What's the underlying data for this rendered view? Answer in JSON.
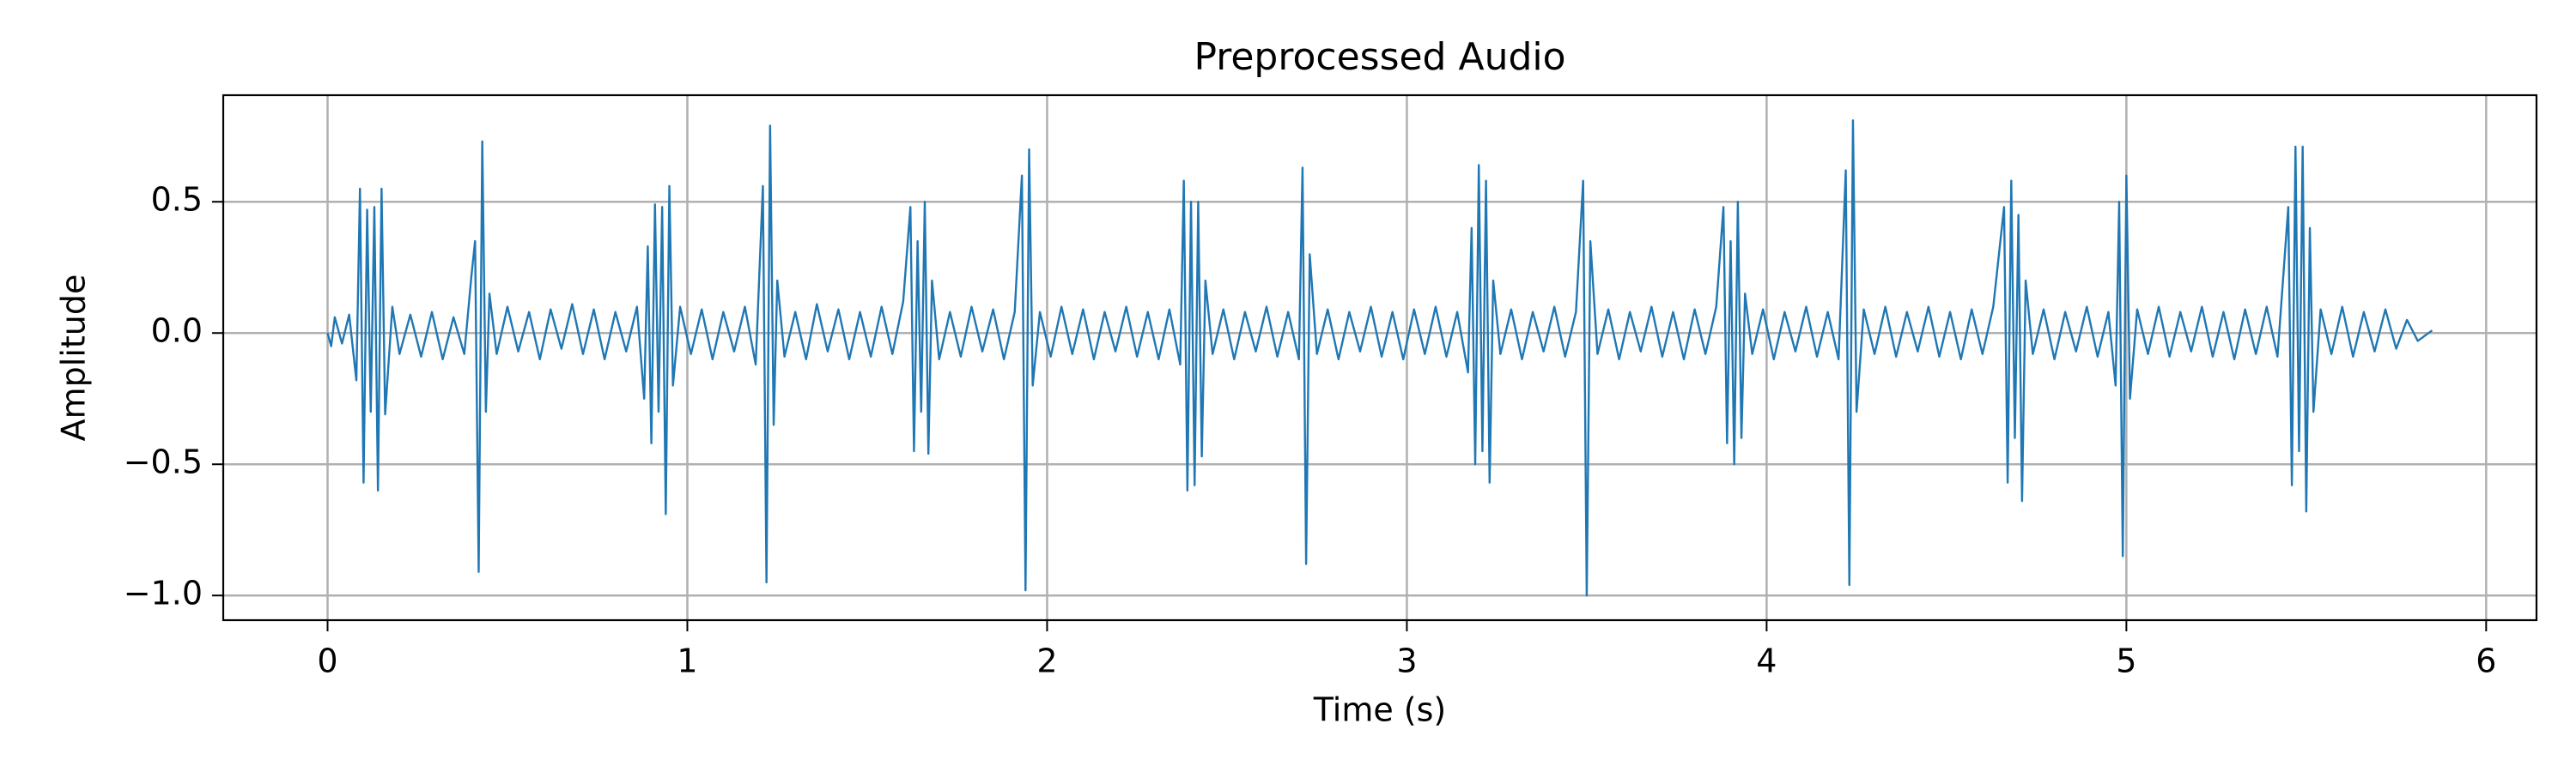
{
  "chart_data": {
    "type": "line",
    "title": "Preprocessed Audio",
    "x_label": "Time (s)",
    "y_label": "Amplitude",
    "color": "#1f77b4",
    "grid": true,
    "xlim": [
      -0.29,
      6.14
    ],
    "xticks": [
      0,
      1,
      2,
      3,
      4,
      5,
      6
    ],
    "ylim": [
      -1.094,
      0.906
    ],
    "yticks": [
      {
        "value": -1,
        "label": "−1.0"
      },
      {
        "value": -0.5,
        "label": "−0.5"
      },
      {
        "value": 0,
        "label": "0.0"
      },
      {
        "value": 0.5,
        "label": "0.5"
      }
    ],
    "x": [
      0,
      0.01,
      0.02,
      0.04,
      0.06,
      0.08,
      0.09,
      0.1,
      0.11,
      0.12,
      0.13,
      0.14,
      0.15,
      0.16,
      0.18,
      0.2,
      0.23,
      0.26,
      0.29,
      0.32,
      0.35,
      0.38,
      0.4,
      0.41,
      0.42,
      0.43,
      0.44,
      0.45,
      0.47,
      0.5,
      0.53,
      0.56,
      0.59,
      0.62,
      0.65,
      0.68,
      0.71,
      0.74,
      0.77,
      0.8,
      0.83,
      0.86,
      0.88,
      0.89,
      0.9,
      0.91,
      0.92,
      0.93,
      0.94,
      0.95,
      0.96,
      0.98,
      1.01,
      1.04,
      1.07,
      1.1,
      1.13,
      1.16,
      1.19,
      1.21,
      1.22,
      1.23,
      1.24,
      1.25,
      1.27,
      1.3,
      1.33,
      1.36,
      1.39,
      1.42,
      1.45,
      1.48,
      1.51,
      1.54,
      1.57,
      1.6,
      1.62,
      1.63,
      1.64,
      1.65,
      1.66,
      1.67,
      1.68,
      1.7,
      1.73,
      1.76,
      1.79,
      1.82,
      1.85,
      1.88,
      1.91,
      1.93,
      1.94,
      1.95,
      1.96,
      1.98,
      2.01,
      2.04,
      2.07,
      2.1,
      2.13,
      2.16,
      2.19,
      2.22,
      2.25,
      2.28,
      2.31,
      2.34,
      2.37,
      2.38,
      2.39,
      2.4,
      2.41,
      2.42,
      2.43,
      2.44,
      2.46,
      2.49,
      2.52,
      2.55,
      2.58,
      2.61,
      2.64,
      2.67,
      2.7,
      2.71,
      2.72,
      2.73,
      2.75,
      2.78,
      2.81,
      2.84,
      2.87,
      2.9,
      2.93,
      2.96,
      2.99,
      3.02,
      3.05,
      3.08,
      3.11,
      3.14,
      3.17,
      3.18,
      3.19,
      3.2,
      3.21,
      3.22,
      3.23,
      3.24,
      3.26,
      3.29,
      3.32,
      3.35,
      3.38,
      3.41,
      3.44,
      3.47,
      3.49,
      3.5,
      3.51,
      3.53,
      3.56,
      3.59,
      3.62,
      3.65,
      3.68,
      3.71,
      3.74,
      3.77,
      3.8,
      3.83,
      3.86,
      3.88,
      3.89,
      3.9,
      3.91,
      3.92,
      3.93,
      3.94,
      3.96,
      3.99,
      4.02,
      4.05,
      4.08,
      4.11,
      4.14,
      4.17,
      4.2,
      4.22,
      4.23,
      4.24,
      4.25,
      4.27,
      4.3,
      4.33,
      4.36,
      4.39,
      4.42,
      4.45,
      4.48,
      4.51,
      4.54,
      4.57,
      4.6,
      4.63,
      4.66,
      4.67,
      4.68,
      4.69,
      4.7,
      4.71,
      4.72,
      4.74,
      4.77,
      4.8,
      4.83,
      4.86,
      4.89,
      4.92,
      4.95,
      4.97,
      4.98,
      4.99,
      5.0,
      5.01,
      5.03,
      5.06,
      5.09,
      5.12,
      5.15,
      5.18,
      5.21,
      5.24,
      5.27,
      5.3,
      5.33,
      5.36,
      5.39,
      5.42,
      5.45,
      5.46,
      5.47,
      5.48,
      5.49,
      5.5,
      5.51,
      5.52,
      5.54,
      5.57,
      5.6,
      5.63,
      5.66,
      5.69,
      5.72,
      5.75,
      5.78,
      5.81,
      5.85
    ],
    "values": [
      0,
      -0.05,
      0.06,
      -0.04,
      0.07,
      -0.18,
      0.55,
      -0.57,
      0.47,
      -0.3,
      0.48,
      -0.6,
      0.55,
      -0.31,
      0.1,
      -0.08,
      0.07,
      -0.09,
      0.08,
      -0.1,
      0.06,
      -0.08,
      0.22,
      0.35,
      -0.91,
      0.73,
      -0.3,
      0.15,
      -0.08,
      0.1,
      -0.07,
      0.08,
      -0.1,
      0.09,
      -0.06,
      0.11,
      -0.08,
      0.09,
      -0.1,
      0.08,
      -0.07,
      0.1,
      -0.25,
      0.33,
      -0.42,
      0.49,
      -0.3,
      0.48,
      -0.69,
      0.56,
      -0.2,
      0.1,
      -0.08,
      0.09,
      -0.1,
      0.08,
      -0.07,
      0.1,
      -0.12,
      0.56,
      -0.95,
      0.79,
      -0.35,
      0.2,
      -0.09,
      0.08,
      -0.1,
      0.11,
      -0.07,
      0.09,
      -0.1,
      0.08,
      -0.09,
      0.1,
      -0.08,
      0.12,
      0.48,
      -0.45,
      0.35,
      -0.3,
      0.5,
      -0.46,
      0.2,
      -0.1,
      0.08,
      -0.09,
      0.1,
      -0.07,
      0.09,
      -0.1,
      0.08,
      0.6,
      -0.98,
      0.7,
      -0.2,
      0.08,
      -0.09,
      0.1,
      -0.08,
      0.09,
      -0.1,
      0.08,
      -0.07,
      0.1,
      -0.09,
      0.08,
      -0.1,
      0.09,
      -0.12,
      0.58,
      -0.6,
      0.5,
      -0.58,
      0.5,
      -0.47,
      0.2,
      -0.08,
      0.09,
      -0.1,
      0.08,
      -0.07,
      0.1,
      -0.09,
      0.08,
      -0.1,
      0.63,
      -0.88,
      0.3,
      -0.08,
      0.09,
      -0.1,
      0.08,
      -0.07,
      0.1,
      -0.09,
      0.08,
      -0.1,
      0.09,
      -0.08,
      0.1,
      -0.09,
      0.08,
      -0.15,
      0.4,
      -0.5,
      0.64,
      -0.45,
      0.58,
      -0.57,
      0.2,
      -0.08,
      0.09,
      -0.1,
      0.08,
      -0.07,
      0.1,
      -0.09,
      0.08,
      0.58,
      -1.0,
      0.35,
      -0.08,
      0.09,
      -0.1,
      0.08,
      -0.07,
      0.1,
      -0.09,
      0.08,
      -0.1,
      0.09,
      -0.08,
      0.1,
      0.48,
      -0.42,
      0.35,
      -0.5,
      0.5,
      -0.4,
      0.15,
      -0.08,
      0.09,
      -0.1,
      0.08,
      -0.07,
      0.1,
      -0.09,
      0.08,
      -0.1,
      0.62,
      -0.96,
      0.81,
      -0.3,
      0.09,
      -0.08,
      0.1,
      -0.09,
      0.08,
      -0.07,
      0.1,
      -0.09,
      0.08,
      -0.1,
      0.09,
      -0.08,
      0.1,
      0.48,
      -0.57,
      0.58,
      -0.4,
      0.45,
      -0.64,
      0.2,
      -0.08,
      0.09,
      -0.1,
      0.08,
      -0.07,
      0.1,
      -0.09,
      0.08,
      -0.2,
      0.5,
      -0.85,
      0.6,
      -0.25,
      0.09,
      -0.08,
      0.1,
      -0.09,
      0.08,
      -0.07,
      0.1,
      -0.09,
      0.08,
      -0.1,
      0.09,
      -0.08,
      0.1,
      -0.09,
      0.48,
      -0.58,
      0.71,
      -0.45,
      0.71,
      -0.68,
      0.4,
      -0.3,
      0.09,
      -0.08,
      0.1,
      -0.09,
      0.08,
      -0.07,
      0.09,
      -0.06,
      0.05,
      -0.03,
      0.01
    ]
  }
}
